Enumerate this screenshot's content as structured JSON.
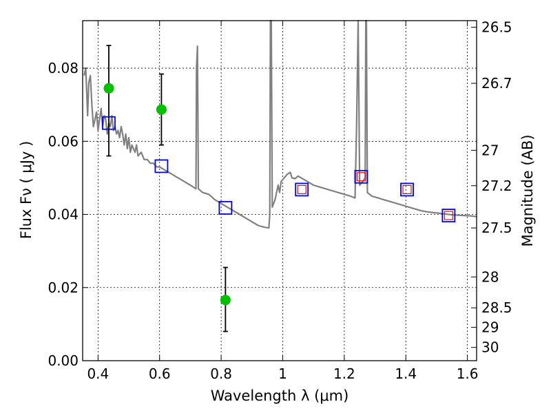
{
  "chart_data": {
    "type": "scatter",
    "xlabel": "Wavelength  λ (μm)",
    "ylabel": "Flux  Fν  ( μJy )",
    "ylabel_right": "Magnitude (AB)",
    "xlim": [
      0.35,
      1.63
    ],
    "ylim": [
      0.0,
      0.093
    ],
    "grid": true,
    "x_ticks": [
      {
        "v": 0.4,
        "label": "0.4"
      },
      {
        "v": 0.6,
        "label": "0.6"
      },
      {
        "v": 0.8,
        "label": "0.8"
      },
      {
        "v": 1.0,
        "label": "1"
      },
      {
        "v": 1.2,
        "label": "1.2"
      },
      {
        "v": 1.4,
        "label": "1.4"
      },
      {
        "v": 1.6,
        "label": "1.6"
      }
    ],
    "y_ticks": [
      {
        "v": 0.0,
        "label": "0.00"
      },
      {
        "v": 0.02,
        "label": "0.02"
      },
      {
        "v": 0.04,
        "label": "0.04"
      },
      {
        "v": 0.06,
        "label": "0.06"
      },
      {
        "v": 0.08,
        "label": "0.08"
      }
    ],
    "mag_ticks": [
      {
        "v": 26.5,
        "label": "26.5"
      },
      {
        "v": 26.7,
        "label": "26.7"
      },
      {
        "v": 27,
        "label": "27"
      },
      {
        "v": 27.2,
        "label": "27.2"
      },
      {
        "v": 27.5,
        "label": "27.5"
      },
      {
        "v": 28,
        "label": "28"
      },
      {
        "v": 28.5,
        "label": "28.5"
      },
      {
        "v": 29,
        "label": "29"
      },
      {
        "v": 30,
        "label": "30"
      }
    ],
    "observed_points": [
      {
        "x": 0.435,
        "y": 0.0745,
        "err_low": 0.056,
        "err_high": 0.0862
      },
      {
        "x": 0.606,
        "y": 0.0687,
        "err_low": 0.059,
        "err_high": 0.0784
      },
      {
        "x": 0.814,
        "y": 0.0166,
        "err_low": 0.008,
        "err_high": 0.0255
      }
    ],
    "model_squares": [
      {
        "x": 0.435,
        "y": 0.065,
        "inner": false
      },
      {
        "x": 0.606,
        "y": 0.0532,
        "inner": false
      },
      {
        "x": 0.814,
        "y": 0.0418,
        "inner": false
      },
      {
        "x": 1.062,
        "y": 0.0468,
        "inner": true
      },
      {
        "x": 1.255,
        "y": 0.0503,
        "inner": true
      },
      {
        "x": 1.404,
        "y": 0.0468,
        "inner": true
      },
      {
        "x": 1.539,
        "y": 0.0397,
        "inner": true
      }
    ],
    "spectrum": [
      [
        0.355,
        0.078
      ],
      [
        0.36,
        0.08
      ],
      [
        0.363,
        0.074
      ],
      [
        0.366,
        0.067
      ],
      [
        0.37,
        0.076
      ],
      [
        0.375,
        0.078
      ],
      [
        0.38,
        0.07
      ],
      [
        0.385,
        0.064
      ],
      [
        0.39,
        0.066
      ],
      [
        0.395,
        0.068
      ],
      [
        0.4,
        0.063
      ],
      [
        0.405,
        0.066
      ],
      [
        0.41,
        0.069
      ],
      [
        0.415,
        0.064
      ],
      [
        0.42,
        0.067
      ],
      [
        0.425,
        0.066
      ],
      [
        0.43,
        0.062
      ],
      [
        0.435,
        0.065
      ],
      [
        0.44,
        0.064
      ],
      [
        0.445,
        0.067
      ],
      [
        0.45,
        0.063
      ],
      [
        0.455,
        0.064
      ],
      [
        0.46,
        0.062
      ],
      [
        0.465,
        0.063
      ],
      [
        0.47,
        0.061
      ],
      [
        0.475,
        0.064
      ],
      [
        0.48,
        0.062
      ],
      [
        0.485,
        0.059
      ],
      [
        0.49,
        0.062
      ],
      [
        0.495,
        0.058
      ],
      [
        0.5,
        0.061
      ],
      [
        0.505,
        0.057
      ],
      [
        0.51,
        0.059
      ],
      [
        0.515,
        0.058
      ],
      [
        0.52,
        0.057
      ],
      [
        0.525,
        0.059
      ],
      [
        0.53,
        0.056
      ],
      [
        0.54,
        0.057
      ],
      [
        0.55,
        0.055
      ],
      [
        0.56,
        0.055
      ],
      [
        0.57,
        0.054
      ],
      [
        0.58,
        0.054
      ],
      [
        0.59,
        0.053
      ],
      [
        0.6,
        0.053
      ],
      [
        0.62,
        0.052
      ],
      [
        0.64,
        0.051
      ],
      [
        0.66,
        0.05
      ],
      [
        0.68,
        0.049
      ],
      [
        0.7,
        0.048
      ],
      [
        0.718,
        0.047
      ],
      [
        0.72,
        0.08
      ],
      [
        0.723,
        0.086
      ],
      [
        0.726,
        0.047
      ],
      [
        0.74,
        0.046
      ],
      [
        0.76,
        0.0455
      ],
      [
        0.78,
        0.044
      ],
      [
        0.8,
        0.043
      ],
      [
        0.82,
        0.042
      ],
      [
        0.84,
        0.041
      ],
      [
        0.86,
        0.04
      ],
      [
        0.88,
        0.039
      ],
      [
        0.9,
        0.038
      ],
      [
        0.92,
        0.037
      ],
      [
        0.94,
        0.0365
      ],
      [
        0.955,
        0.0363
      ],
      [
        0.958,
        0.04
      ],
      [
        0.96,
        0.093
      ],
      [
        0.963,
        0.093
      ],
      [
        0.966,
        0.042
      ],
      [
        0.975,
        0.044
      ],
      [
        0.985,
        0.048
      ],
      [
        0.99,
        0.046
      ],
      [
        0.995,
        0.049
      ],
      [
        1.005,
        0.05
      ],
      [
        1.015,
        0.051
      ],
      [
        1.025,
        0.0515
      ],
      [
        1.03,
        0.05
      ],
      [
        1.04,
        0.0498
      ],
      [
        1.05,
        0.0505
      ],
      [
        1.06,
        0.05
      ],
      [
        1.07,
        0.0495
      ],
      [
        1.08,
        0.049
      ],
      [
        1.1,
        0.048
      ],
      [
        1.12,
        0.0475
      ],
      [
        1.14,
        0.047
      ],
      [
        1.16,
        0.0465
      ],
      [
        1.18,
        0.046
      ],
      [
        1.2,
        0.0455
      ],
      [
        1.22,
        0.045
      ],
      [
        1.235,
        0.0445
      ],
      [
        1.24,
        0.064
      ],
      [
        1.245,
        0.093
      ],
      [
        1.25,
        0.048
      ],
      [
        1.26,
        0.049
      ],
      [
        1.268,
        0.05
      ],
      [
        1.27,
        0.093
      ],
      [
        1.272,
        0.093
      ],
      [
        1.275,
        0.046
      ],
      [
        1.29,
        0.045
      ],
      [
        1.31,
        0.0445
      ],
      [
        1.33,
        0.044
      ],
      [
        1.35,
        0.0435
      ],
      [
        1.37,
        0.043
      ],
      [
        1.39,
        0.0425
      ],
      [
        1.41,
        0.042
      ],
      [
        1.43,
        0.0415
      ],
      [
        1.45,
        0.041
      ],
      [
        1.47,
        0.0407
      ],
      [
        1.49,
        0.0405
      ],
      [
        1.51,
        0.0403
      ],
      [
        1.53,
        0.0401
      ],
      [
        1.55,
        0.0399
      ],
      [
        1.57,
        0.0398
      ],
      [
        1.59,
        0.0397
      ],
      [
        1.61,
        0.0396
      ],
      [
        1.63,
        0.0394
      ]
    ],
    "colors": {
      "spectrum": "#808080",
      "observed": "#00c000",
      "errorbar": "#000000",
      "square_outer": "#0000ff",
      "square_inner": "#ff0000"
    }
  }
}
